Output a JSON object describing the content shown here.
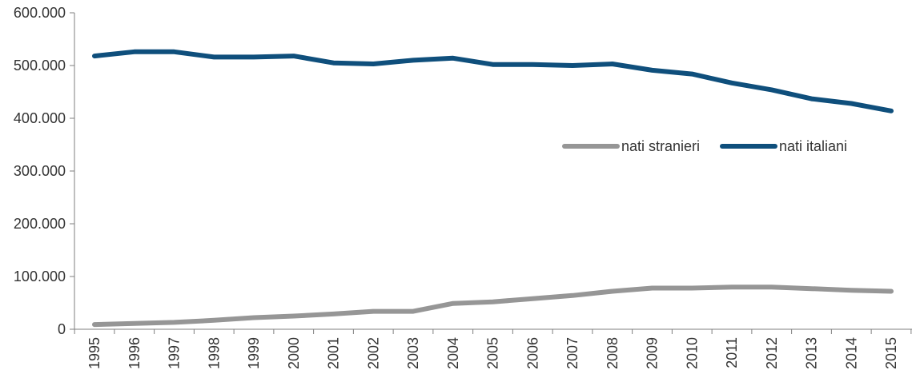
{
  "chart_data": {
    "type": "line",
    "title": "",
    "xlabel": "",
    "ylabel": "",
    "x": [
      "1995",
      "1996",
      "1997",
      "1998",
      "1999",
      "2000",
      "2001",
      "2002",
      "2003",
      "2004",
      "2005",
      "2006",
      "2007",
      "2008",
      "2009",
      "2010",
      "2011",
      "2012",
      "2013",
      "2014",
      "2015"
    ],
    "ylim": [
      0,
      600000
    ],
    "yticks": [
      0,
      100000,
      200000,
      300000,
      400000,
      500000,
      600000
    ],
    "ytick_labels": [
      "0",
      "100.000",
      "200.000",
      "300.000",
      "400.000",
      "500.000",
      "600.000"
    ],
    "grid": false,
    "legend_position": "middle-right",
    "series": [
      {
        "name": "nati stranieri",
        "color": "#969696",
        "values": [
          9000,
          11000,
          13000,
          17000,
          22000,
          25000,
          29000,
          34000,
          34000,
          49000,
          52000,
          58000,
          64000,
          72000,
          78000,
          78000,
          80000,
          80000,
          77000,
          74000,
          72000
        ]
      },
      {
        "name": "nati italiani",
        "color": "#0f4f7c",
        "values": [
          518000,
          526000,
          526000,
          516000,
          516000,
          518000,
          505000,
          503000,
          510000,
          514000,
          502000,
          502000,
          500000,
          503000,
          491000,
          484000,
          467000,
          454000,
          437000,
          428000,
          414000
        ]
      }
    ]
  }
}
